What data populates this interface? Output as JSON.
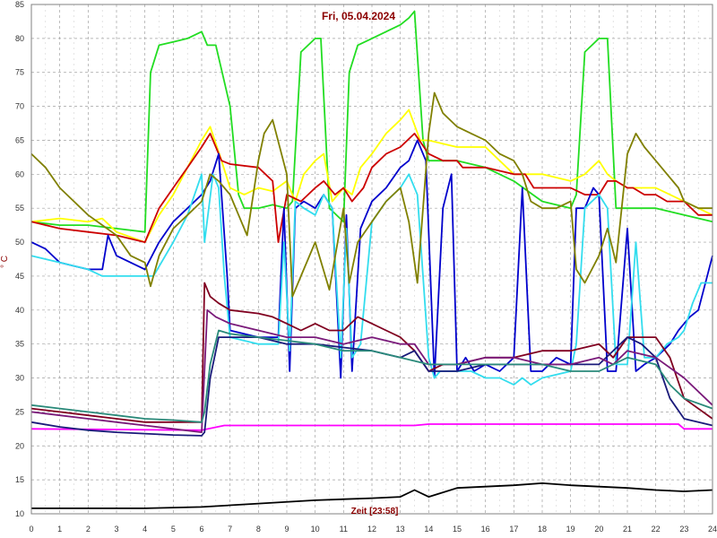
{
  "chart_data": {
    "type": "line",
    "title": "Fri, 05.04.2024",
    "xlabel": "Zeit [23:58]",
    "ylabel": "° C",
    "xlim": [
      0,
      24
    ],
    "ylim": [
      10,
      85
    ],
    "xticks": [
      0,
      1,
      2,
      3,
      4,
      5,
      6,
      7,
      8,
      9,
      10,
      11,
      12,
      13,
      14,
      15,
      16,
      17,
      18,
      19,
      20,
      21,
      22,
      23,
      24
    ],
    "yticks": [
      10,
      15,
      20,
      25,
      30,
      35,
      40,
      45,
      50,
      55,
      60,
      65,
      70,
      75,
      80,
      85
    ],
    "grid": true,
    "series": [
      {
        "color": "#ff00ff",
        "x": [
          0,
          6.0,
          6.8,
          13.5,
          14,
          22.8,
          23,
          24
        ],
        "y": [
          22.5,
          22.3,
          23,
          23,
          23.2,
          23.2,
          22.5,
          22.5
        ]
      },
      {
        "color": "#000000",
        "x": [
          0,
          4,
          6,
          8,
          10,
          12,
          13,
          13.5,
          14,
          15,
          16,
          17,
          18,
          19,
          20,
          21,
          22,
          23,
          24
        ],
        "y": [
          10.8,
          10.8,
          11,
          11.5,
          12,
          12.3,
          12.5,
          13.5,
          12.5,
          13.8,
          14,
          14.2,
          14.5,
          14.2,
          14,
          13.8,
          13.5,
          13.3,
          13.5
        ]
      },
      {
        "color": "#22dd22",
        "x": [
          0,
          1,
          2,
          3,
          4,
          4.2,
          4.5,
          5,
          5.5,
          6,
          6.2,
          6.5,
          7,
          7.3,
          7.5,
          8,
          8.5,
          9,
          9.2,
          9.5,
          10,
          10.2,
          10.5,
          11,
          11.2,
          11.5,
          12,
          12.5,
          13,
          13.3,
          13.5,
          13.8,
          14,
          15,
          16,
          17,
          18,
          19,
          19.2,
          19.5,
          20,
          20.3,
          20.6,
          21,
          22,
          23,
          24
        ],
        "y": [
          53,
          52.5,
          52.5,
          52,
          51.5,
          75,
          79,
          79.5,
          80,
          81,
          79,
          79,
          70,
          57,
          55,
          55,
          55.5,
          55,
          56,
          78,
          80,
          80,
          55,
          53,
          75,
          79,
          80,
          81,
          82,
          83,
          84,
          65,
          62,
          62,
          61,
          59,
          56,
          55,
          57,
          78,
          80,
          80,
          55,
          55,
          55,
          54,
          53
        ]
      },
      {
        "color": "#ffff00",
        "x": [
          0,
          1,
          2,
          2.5,
          3,
          4,
          4.5,
          5,
          5.5,
          6,
          6.3,
          6.7,
          7,
          7.5,
          8,
          8.5,
          9,
          9.3,
          9.6,
          10,
          10.3,
          10.6,
          11,
          11.3,
          11.6,
          12,
          12.5,
          13,
          13.3,
          13.7,
          14,
          15,
          16,
          17,
          18,
          19,
          19.5,
          20,
          20.3,
          20.6,
          21,
          22,
          22.5,
          23,
          24
        ],
        "y": [
          53,
          53.5,
          53,
          53.5,
          51.5,
          50,
          54,
          57,
          61,
          65,
          67,
          62,
          58,
          57,
          58,
          57.5,
          59,
          56,
          60,
          62,
          63,
          56,
          58,
          57,
          61,
          63,
          66,
          68,
          69.5,
          65,
          65,
          64,
          64,
          60,
          60,
          59,
          60,
          62,
          60,
          59,
          58,
          58,
          57,
          56,
          54
        ]
      },
      {
        "color": "#cc0000",
        "x": [
          0,
          1,
          2,
          3,
          4,
          4.5,
          5,
          5.5,
          6,
          6.3,
          6.7,
          7,
          8,
          8.5,
          8.7,
          9,
          9.5,
          10,
          10.3,
          10.7,
          11,
          11.3,
          11.7,
          12,
          12.5,
          13,
          13.5,
          14,
          14.5,
          15,
          15.2,
          15.6,
          16,
          17,
          17.4,
          17.7,
          18,
          19,
          19.5,
          19.8,
          20,
          20.3,
          20.6,
          21,
          21.2,
          21.6,
          22,
          22.4,
          22.8,
          23,
          23.5,
          24
        ],
        "y": [
          53,
          52,
          51.5,
          51,
          50,
          55,
          58,
          61,
          64,
          66,
          62,
          61.5,
          61,
          59,
          50,
          57,
          56,
          58,
          59,
          57,
          58,
          56,
          58,
          61,
          63,
          64,
          66,
          63,
          62,
          62,
          61,
          61,
          61,
          60,
          60,
          58,
          58,
          58,
          57,
          57,
          57,
          59,
          59,
          58,
          58,
          57,
          57,
          56,
          56,
          56,
          54,
          54
        ]
      },
      {
        "color": "#0000cc",
        "x": [
          0,
          0.5,
          1,
          1.5,
          2,
          2.5,
          2.7,
          3,
          3.5,
          4,
          4.5,
          5,
          5.5,
          6,
          6.3,
          6.6,
          6.9,
          7,
          8,
          8.7,
          8.9,
          9.1,
          9.3,
          9.6,
          10,
          10.3,
          10.6,
          10.9,
          11.1,
          11.3,
          11.6,
          11.9,
          12,
          12.5,
          13,
          13.3,
          13.6,
          13.9,
          14.2,
          14.5,
          14.8,
          15,
          15.3,
          15.6,
          16,
          16.5,
          17,
          17.3,
          17.6,
          18,
          18.5,
          19,
          19.2,
          19.5,
          19.8,
          20,
          20.3,
          20.6,
          21,
          21.3,
          21.6,
          22,
          22.5,
          22.8,
          23,
          23.2,
          23.5,
          24
        ],
        "y": [
          50,
          49,
          47,
          46.5,
          46,
          46,
          51,
          48,
          47,
          46,
          50,
          53,
          55,
          57,
          59,
          63,
          45,
          37,
          36,
          36,
          55,
          31,
          55,
          56,
          55,
          57,
          55,
          30,
          54,
          31,
          52,
          55,
          56,
          58,
          61,
          62,
          65,
          62,
          30,
          55,
          60,
          31,
          33,
          31,
          32,
          31,
          33,
          58,
          31,
          31,
          33,
          32,
          55,
          55,
          58,
          57,
          31,
          31,
          52,
          31,
          32,
          33,
          35,
          37,
          38,
          39,
          40,
          48
        ]
      },
      {
        "color": "#33ddee",
        "x": [
          0,
          0.5,
          1,
          2,
          2.5,
          3,
          4,
          4.3,
          5,
          5.5,
          6,
          6.1,
          6.4,
          6.6,
          6.8,
          7,
          8,
          8.7,
          8.9,
          9.1,
          9.3,
          9.6,
          10,
          10.3,
          10.6,
          10.9,
          11.1,
          11.3,
          11.6,
          12,
          12.5,
          13,
          13.3,
          13.6,
          14,
          14.2,
          14.4,
          15,
          15.2,
          15.5,
          16,
          16.5,
          17,
          17.3,
          17.6,
          18,
          19,
          19.2,
          19.5,
          20,
          20.3,
          20.6,
          21,
          21.3,
          21.6,
          22,
          22.4,
          22.8,
          23,
          23.3,
          23.6,
          24
        ],
        "y": [
          48,
          47.5,
          47,
          46,
          45,
          45,
          45,
          45,
          50,
          54,
          60,
          50,
          60,
          58,
          45,
          36,
          35,
          35,
          50,
          34,
          56,
          55,
          54,
          57,
          55,
          33,
          52,
          33,
          35,
          53,
          56,
          58,
          60,
          57,
          33,
          30,
          31,
          31,
          31,
          31,
          30,
          30,
          29,
          30,
          29,
          30,
          31,
          35,
          55,
          57,
          55,
          32,
          32,
          50,
          33,
          33,
          35,
          36,
          37,
          41,
          44,
          44
        ]
      },
      {
        "color": "#808000",
        "x": [
          0,
          0.5,
          1,
          1.5,
          2,
          2.5,
          3,
          3.5,
          4,
          4.2,
          4.5,
          5,
          5.5,
          6,
          6.3,
          6.6,
          7,
          7.3,
          7.6,
          8,
          8.2,
          8.5,
          9,
          9.2,
          9.5,
          10,
          10.5,
          11,
          11.2,
          11.5,
          12,
          12.5,
          13,
          13.3,
          13.6,
          14,
          14.2,
          14.5,
          15,
          15.5,
          16,
          16.5,
          17,
          17.3,
          17.6,
          18,
          18.5,
          19,
          19.2,
          19.5,
          20,
          20.3,
          20.6,
          21,
          21.3,
          21.6,
          22,
          22.4,
          22.8,
          23,
          23.5,
          24
        ],
        "y": [
          63,
          61,
          58,
          56,
          54,
          52.5,
          51,
          48,
          47,
          43.5,
          48,
          52,
          54,
          56,
          60,
          59,
          57,
          54,
          51,
          62,
          66,
          68,
          60,
          42,
          45,
          50,
          43,
          55,
          44,
          50,
          53,
          56,
          58,
          53,
          44,
          66,
          72,
          69,
          67,
          66,
          65,
          63,
          62,
          60,
          56,
          55,
          55,
          56,
          46,
          44,
          48,
          52,
          47,
          63,
          66,
          64,
          62,
          60,
          58,
          56,
          55,
          55
        ]
      },
      {
        "color": "#800020",
        "x": [
          0,
          1,
          2,
          3,
          4,
          5,
          6,
          6.1,
          6.3,
          6.6,
          7,
          8,
          8.5,
          9,
          9.5,
          10,
          10.5,
          11,
          11.5,
          12,
          12.5,
          13,
          13.5,
          14,
          14.5,
          15,
          16,
          17,
          18,
          19,
          20,
          20.5,
          21,
          21.5,
          22,
          22.5,
          23,
          24
        ],
        "y": [
          25.5,
          25,
          24.5,
          24,
          23.5,
          23.5,
          23.5,
          44,
          42,
          41,
          40,
          39.5,
          39,
          38,
          37,
          38,
          37,
          37,
          39,
          38,
          37,
          36,
          34,
          31,
          32,
          32,
          33,
          33,
          34,
          34,
          35,
          33,
          36,
          36,
          36,
          33,
          27,
          24
        ]
      },
      {
        "color": "#1a1a7a",
        "x": [
          0,
          1,
          2,
          3,
          4,
          5,
          6,
          6.1,
          6.3,
          6.6,
          7,
          8,
          8.5,
          9,
          10,
          11,
          12,
          13,
          13.5,
          14,
          15,
          16,
          17,
          18,
          19,
          20,
          21,
          21.5,
          22,
          22.5,
          23,
          24
        ],
        "y": [
          23.5,
          22.8,
          22.3,
          22,
          21.8,
          21.6,
          21.5,
          22,
          30,
          36,
          36,
          36,
          35.5,
          35,
          35,
          34.5,
          34,
          33,
          34,
          31,
          31,
          32,
          32,
          32,
          32,
          32,
          36,
          35,
          33,
          27,
          24,
          23
        ]
      },
      {
        "color": "#7a1a7a",
        "x": [
          0,
          1,
          2,
          3,
          4,
          5,
          6,
          6.2,
          6.5,
          7,
          8,
          9,
          10,
          11,
          12,
          13,
          13.5,
          14,
          15,
          16,
          17,
          18,
          19,
          20,
          20.5,
          21,
          22,
          23,
          24
        ],
        "y": [
          25,
          24.5,
          24,
          23.5,
          23,
          22.5,
          22,
          40,
          39,
          38,
          37,
          36,
          36,
          35,
          36,
          35,
          35,
          32,
          32,
          33,
          33,
          32,
          32,
          33,
          32,
          34,
          33,
          30,
          26
        ]
      },
      {
        "color": "#2a8a7a",
        "x": [
          0,
          1,
          2,
          3,
          4,
          5,
          6,
          6.1,
          6.3,
          6.6,
          7,
          8,
          9,
          10,
          11,
          12,
          13,
          14,
          15,
          16,
          17,
          18,
          19,
          20,
          21,
          22,
          22.5,
          23,
          24
        ],
        "y": [
          26,
          25.5,
          25,
          24.5,
          24,
          23.8,
          23.5,
          25,
          32,
          37,
          36.5,
          36,
          35.5,
          35,
          34,
          34,
          33,
          32,
          32,
          32,
          32,
          32,
          31,
          31,
          33,
          32,
          29,
          27,
          25.5
        ]
      }
    ]
  }
}
